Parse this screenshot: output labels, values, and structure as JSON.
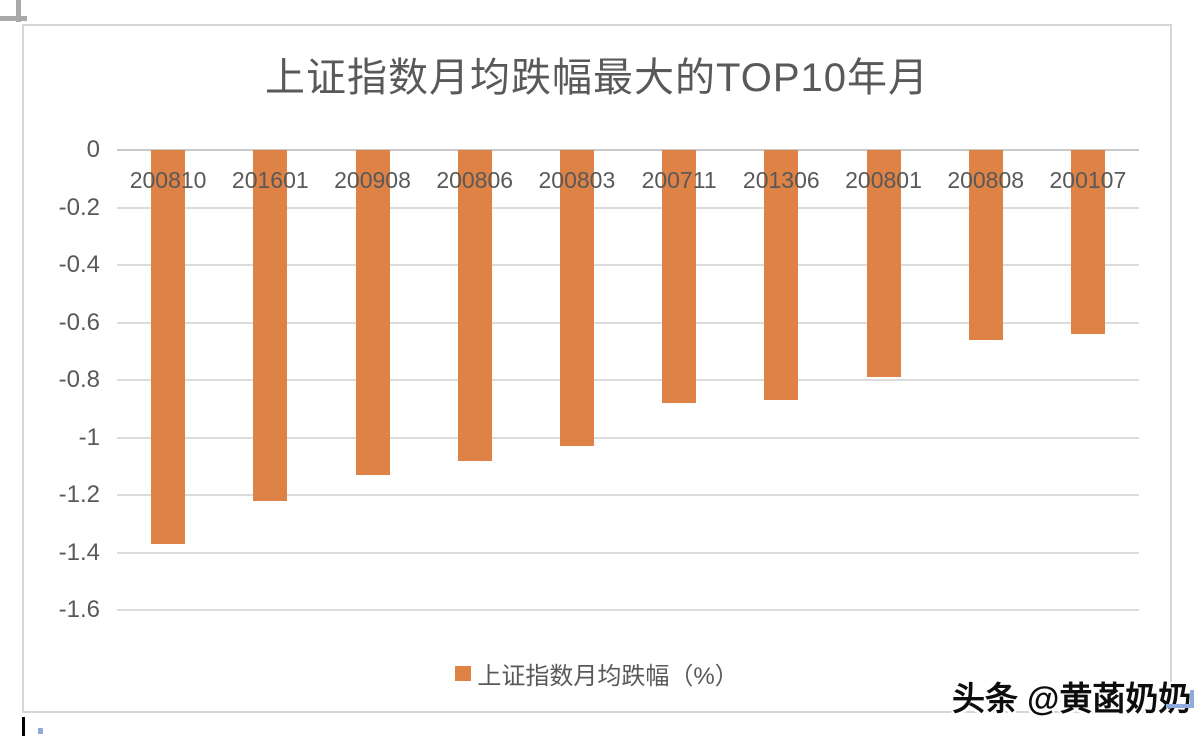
{
  "page": {
    "watermark": "头条 @黄菡奶奶"
  },
  "chart_data": {
    "type": "bar",
    "title": "上证指数月均跌幅最大的TOP10年月",
    "categories": [
      "200810",
      "201601",
      "200908",
      "200806",
      "200803",
      "200711",
      "201306",
      "200801",
      "200808",
      "200107"
    ],
    "values": [
      -1.37,
      -1.22,
      -1.13,
      -1.08,
      -1.03,
      -0.88,
      -0.87,
      -0.79,
      -0.66,
      -0.64
    ],
    "series_name": "上证指数月均跌幅（%）",
    "xlabel": "",
    "ylabel": "",
    "ylim": [
      -1.6,
      0
    ],
    "yticks": [
      0,
      -0.2,
      -0.4,
      -0.6,
      -0.8,
      -1,
      -1.2,
      -1.4,
      -1.6
    ],
    "ytick_labels": [
      "0",
      "-0.2",
      "-0.4",
      "-0.6",
      "-0.8",
      "-1",
      "-1.2",
      "-1.4",
      "-1.6"
    ],
    "legend": [
      "上证指数月均跌幅（%）"
    ],
    "legend_position": "bottom",
    "grid": true,
    "bar_color": "#de8245",
    "text_color": "#595959"
  }
}
